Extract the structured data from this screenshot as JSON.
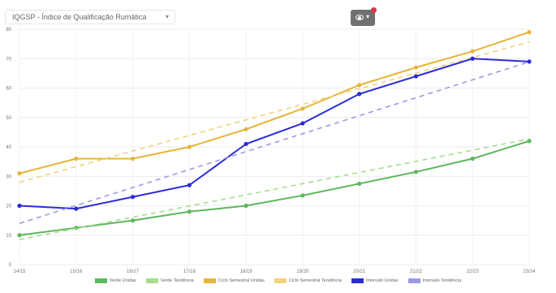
{
  "selector": {
    "label": "IQGSP - Índice de Qualificação Rumática",
    "icon": "chevron-down-icon"
  },
  "view_button": {
    "icon": "eye-icon",
    "chevron": "▾",
    "badge_color": "#e0343f"
  },
  "chart_data": {
    "type": "line",
    "title": "",
    "xlabel": "",
    "ylabel": "",
    "categories": [
      "14/15",
      "15/16",
      "16/17",
      "17/18",
      "18/19",
      "19/20",
      "20/21",
      "21/22",
      "22/23",
      "23/24"
    ],
    "ylim": [
      0,
      80
    ],
    "yticks": [
      "0",
      "10",
      "20",
      "30",
      "40",
      "50",
      "60",
      "70",
      "80"
    ],
    "grid": true,
    "legend_position": "bottom",
    "series": [
      {
        "name": "Verde Unidas",
        "color": "#5cb85c",
        "dashed": false,
        "markers": true,
        "values": [
          10,
          12.5,
          15,
          18,
          20,
          23.5,
          27.5,
          31.5,
          36,
          42
        ]
      },
      {
        "name": "Verde Tendência",
        "color": "#a6dd8e",
        "dashed": true,
        "markers": false,
        "values": [
          8.5,
          12.3,
          16.1,
          19.9,
          23.7,
          27.5,
          31.3,
          35.1,
          38.9,
          42.7
        ]
      },
      {
        "name": "Ciclo Semestral Unidas",
        "color": "#e6b53a",
        "dashed": false,
        "markers": true,
        "values": [
          31,
          36,
          36,
          40,
          46,
          53,
          61,
          67,
          72.5,
          79
        ]
      },
      {
        "name": "Ciclo Semestral Tendência",
        "color": "#f2d27a",
        "dashed": true,
        "markers": false,
        "values": [
          28,
          33.3,
          38.6,
          43.9,
          49.2,
          54.5,
          59.8,
          65.1,
          70.4,
          75.7
        ]
      },
      {
        "name": "Intervalo Unidas",
        "color": "#2b2bd6",
        "dashed": false,
        "markers": true,
        "values": [
          20,
          19,
          23,
          27,
          41,
          48,
          58,
          64,
          70,
          69
        ]
      },
      {
        "name": "Intervalo Tendência",
        "color": "#9b9be8",
        "dashed": true,
        "markers": false,
        "values": [
          14,
          20.1,
          26.2,
          32.3,
          38.4,
          44.5,
          50.6,
          56.7,
          62.8,
          68.9
        ]
      }
    ]
  }
}
